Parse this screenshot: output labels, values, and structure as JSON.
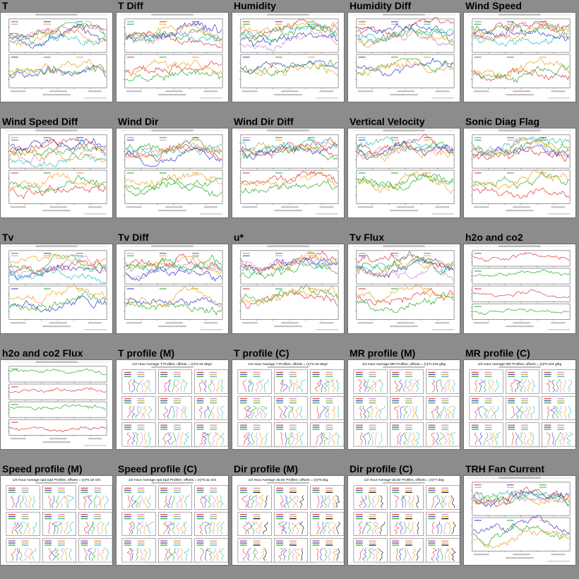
{
  "cells": [
    {
      "title": "T",
      "kind": "ts2",
      "cap": "T (M and C towers) 2012 Oct 28 - Oct 28",
      "colors": [
        "#d33",
        "#33c",
        "#2a2",
        "#c8c",
        "#e9a020",
        "#2bb"
      ]
    },
    {
      "title": "T Diff",
      "kind": "ts2",
      "cap": "T (M and C towers), referenced to bottom 2012 Oct 28 - Oct 28",
      "colors": [
        "#2bb",
        "#d33",
        "#33c",
        "#2a2",
        "#e9a020",
        "#c8c"
      ]
    },
    {
      "title": "Humidity",
      "kind": "ts2",
      "cap": "RH (M and C towers) 2012 Oct 28 - Oct 28",
      "colors": [
        "#d33",
        "#33c",
        "#c8c",
        "#2a2",
        "#e9a020",
        "#2bb"
      ]
    },
    {
      "title": "Humidity Diff",
      "kind": "ts2",
      "cap": "RH (M and C towers), referenced to bottom 2012 Oct 28 - Oct 28",
      "colors": [
        "#d33",
        "#33c",
        "#2a2",
        "#e9a020",
        "#c8c",
        "#2bb"
      ]
    },
    {
      "title": "Wind Speed",
      "kind": "ts2",
      "cap": "spd (M and C towers) 2012 Oct 28 - Oct 28",
      "colors": [
        "#2bb",
        "#d33",
        "#33c",
        "#2a2",
        "#c8c",
        "#e9a020"
      ]
    },
    {
      "title": "Wind Speed Diff",
      "kind": "ts2",
      "cap": "spd (M and C towers), referenced to bottom 2012 Oct 28 - Oct 28",
      "colors": [
        "#c8c",
        "#d33",
        "#33c",
        "#2a2",
        "#e9a020",
        "#2bb"
      ]
    },
    {
      "title": "Wind Dir",
      "kind": "ts2",
      "cap": "dir (M and C towers) 2012 Oct 28 - Oct 28",
      "colors": [
        "#2bb",
        "#2a2",
        "#d33",
        "#33c",
        "#c8c",
        "#e9a020"
      ]
    },
    {
      "title": "Wind Dir Diff",
      "kind": "ts2",
      "cap": "dir (M and C towers), referenced to bottom 2012 Oct 28 - Oct 28",
      "colors": [
        "#c8c",
        "#d33",
        "#2a2",
        "#33c",
        "#e9a020",
        "#2bb"
      ]
    },
    {
      "title": "Vertical Velocity",
      "kind": "ts2",
      "cap": "w (M and C towers) 2012 Oct 28 - Oct 28",
      "colors": [
        "#2bb",
        "#2a2",
        "#d33",
        "#33c",
        "#c8c",
        "#e9a020"
      ]
    },
    {
      "title": "Sonic Diag Flag",
      "kind": "ts2",
      "cap": "diag (M and C towers) 2012 Oct 28 - Oct 28",
      "colors": [
        "#2bb",
        "#d33",
        "#33c",
        "#2a2",
        "#c8c",
        "#e9a020"
      ]
    },
    {
      "title": "Tv",
      "kind": "ts2",
      "cap": "tc (M and C towers) 2012 Oct 28 - Oct 28",
      "colors": [
        "#d33",
        "#33c",
        "#2a2",
        "#c8c",
        "#e9a020",
        "#2bb"
      ]
    },
    {
      "title": "Tv Diff",
      "kind": "ts2",
      "cap": "tc (M and C towers), referenced to bottom 2012 Oct 28 - Oct 28",
      "colors": [
        "#c8c",
        "#33c",
        "#d33",
        "#2a2",
        "#e9a020",
        "#2bb"
      ]
    },
    {
      "title": "u*",
      "kind": "ts2",
      "cap": "u* (M and C towers) 2012 Oct 28 - Oct 28",
      "colors": [
        "#2bb",
        "#d33",
        "#2a2",
        "#33c",
        "#c8c",
        "#e9a020"
      ]
    },
    {
      "title": "Tv Flux",
      "kind": "ts2",
      "cap": "w'tc' (M and C towers) 2012 Oct 28 - Oct 28",
      "colors": [
        "#2bb",
        "#d33",
        "#2a2",
        "#33c",
        "#c8c",
        "#e9a020"
      ]
    },
    {
      "title": "h2o and co2",
      "kind": "ts4",
      "cap": "h2o,co2 2012 Oct 28 - Oct 28",
      "colors": [
        "#d33",
        "#2a2",
        "#d33",
        "#2a2"
      ]
    },
    {
      "title": "h2o and co2 Flux",
      "kind": "ts4",
      "cap": "Scalar Fluxes 2012 Oct 28 - Oct 28",
      "colors": [
        "#2a2",
        "#d33",
        "#2a2",
        "#d33"
      ]
    },
    {
      "title": "T profile (M)",
      "kind": "profile",
      "cap": "1/2 Hour Average T Profiles; offsets = (n)*0.16 degC",
      "colors": [
        "#d33",
        "#33c",
        "#2a2",
        "#c8c",
        "#e9a020",
        "#2bb"
      ]
    },
    {
      "title": "T profile (C)",
      "kind": "profile",
      "cap": "1/2 Hour Average T Profiles; offsets = (n)*0.18 degC",
      "colors": [
        "#d33",
        "#33c",
        "#2a2",
        "#c8c",
        "#e9a020",
        "#2bb"
      ]
    },
    {
      "title": "MR profile (M)",
      "kind": "profile",
      "cap": "1/2 Hour Average MR Profiles; offsets = (n)*0.104 g/kg",
      "colors": [
        "#d33",
        "#33c",
        "#2a2",
        "#c8c",
        "#e9a020",
        "#2bb"
      ]
    },
    {
      "title": "MR profile (C)",
      "kind": "profile",
      "cap": "1/2 Hour Average MR Profiles; offsets = (n)*0.104 g/kg",
      "colors": [
        "#d33",
        "#33c",
        "#2a2",
        "#c8c",
        "#e9a020",
        "#2bb"
      ]
    },
    {
      "title": "Speed profile (M)",
      "kind": "profile",
      "cap": "1/2 Hour Average spd.Spd Profiles; offsets = (n)*0.16 m/s",
      "colors": [
        "#d33",
        "#33c",
        "#2a2",
        "#c8c",
        "#e9a020",
        "#2bb"
      ]
    },
    {
      "title": "Speed profile (C)",
      "kind": "profile",
      "cap": "1/2 Hour Average spd.Spd Profiles; offsets = (n)*0.11 m/s",
      "colors": [
        "#d33",
        "#33c",
        "#2a2",
        "#c8c",
        "#e9a020",
        "#2bb"
      ]
    },
    {
      "title": "Dir profile (M)",
      "kind": "profile",
      "cap": "1/2 Hour Average dir.Dir Profiles; offsets = (n)*8 deg",
      "colors": [
        "#d33",
        "#33c",
        "#2a2",
        "#c8c",
        "#e9a020",
        "#000"
      ]
    },
    {
      "title": "Dir profile (C)",
      "kind": "profile",
      "cap": "1/2 Hour Average dir.Dir Profiles; offsets = (n)*7 deg",
      "colors": [
        "#d33",
        "#33c",
        "#2a2",
        "#c8c",
        "#e9a020",
        "#000"
      ]
    },
    {
      "title": "TRH Fan Current",
      "kind": "ts2",
      "cap": "Ifan (M and C towers) 2012 Oct 28 - Oct 28",
      "colors": [
        "#d33",
        "#33c",
        "#2a2",
        "#c8c",
        "#e9a020",
        "#2bb"
      ]
    }
  ]
}
